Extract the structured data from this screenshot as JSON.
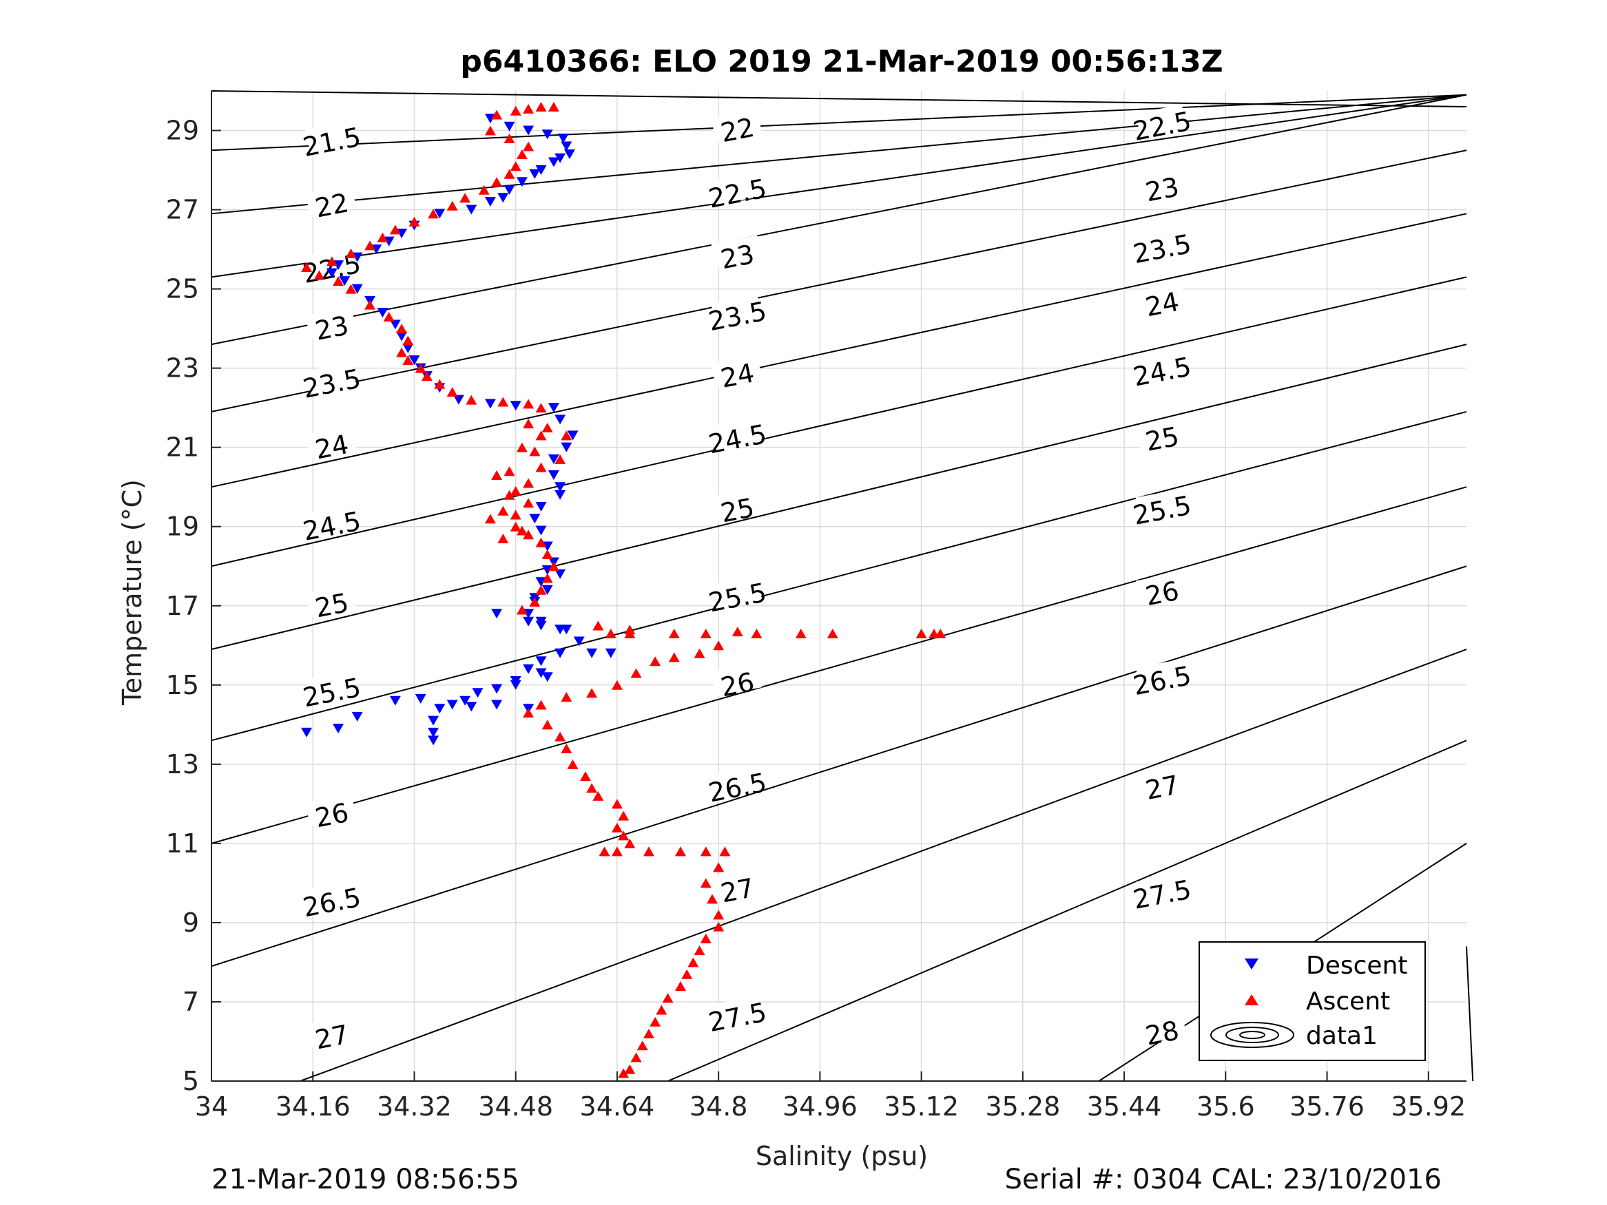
{
  "chart_data": {
    "type": "scatter",
    "title": "p6410366: ELO 2019 21-Mar-2019 00:56:13Z",
    "xlabel": "Salinity (psu)",
    "ylabel": "Temperature (°C)",
    "xlim": [
      34,
      35.98
    ],
    "ylim": [
      5,
      30
    ],
    "grid": true,
    "xticks": [
      34,
      34.16,
      34.32,
      34.48,
      34.64,
      34.8,
      34.96,
      35.12,
      35.28,
      35.44,
      35.6,
      35.76,
      35.92
    ],
    "xtick_labels": [
      "34",
      "34.16",
      "34.32",
      "34.48",
      "34.64",
      "34.8",
      "34.96",
      "35.12",
      "35.28",
      "35.44",
      "35.6",
      "35.76",
      "35.92"
    ],
    "yticks": [
      5,
      7,
      9,
      11,
      13,
      15,
      17,
      19,
      21,
      23,
      25,
      27,
      29
    ],
    "ytick_labels": [
      "5",
      "7",
      "9",
      "11",
      "13",
      "15",
      "17",
      "19",
      "21",
      "23",
      "25",
      "27",
      "29"
    ],
    "legend": {
      "position": "bottom-right",
      "entries": [
        "Descent",
        "Ascent",
        "data1"
      ]
    },
    "series": [
      {
        "name": "Descent",
        "color": "#0000ff",
        "marker": "triangle-down",
        "points": [
          [
            34.44,
            29.3
          ],
          [
            34.47,
            29.1
          ],
          [
            34.5,
            29.0
          ],
          [
            34.53,
            28.9
          ],
          [
            34.555,
            28.8
          ],
          [
            34.56,
            28.6
          ],
          [
            34.565,
            28.4
          ],
          [
            34.55,
            28.3
          ],
          [
            34.54,
            28.2
          ],
          [
            34.52,
            28.0
          ],
          [
            34.51,
            27.9
          ],
          [
            34.49,
            27.7
          ],
          [
            34.47,
            27.5
          ],
          [
            34.46,
            27.3
          ],
          [
            34.44,
            27.2
          ],
          [
            34.41,
            27.0
          ],
          [
            34.36,
            26.9
          ],
          [
            34.32,
            26.6
          ],
          [
            34.3,
            26.4
          ],
          [
            34.28,
            26.2
          ],
          [
            34.26,
            26.0
          ],
          [
            34.23,
            25.8
          ],
          [
            34.2,
            25.6
          ],
          [
            34.19,
            25.4
          ],
          [
            34.21,
            25.2
          ],
          [
            34.23,
            25.0
          ],
          [
            34.25,
            24.7
          ],
          [
            34.27,
            24.4
          ],
          [
            34.29,
            24.1
          ],
          [
            34.3,
            23.8
          ],
          [
            34.31,
            23.5
          ],
          [
            34.32,
            23.2
          ],
          [
            34.33,
            23.0
          ],
          [
            34.34,
            22.8
          ],
          [
            34.36,
            22.5
          ],
          [
            34.39,
            22.2
          ],
          [
            34.44,
            22.1
          ],
          [
            34.48,
            22.05
          ],
          [
            34.54,
            22.0
          ],
          [
            34.55,
            21.7
          ],
          [
            34.57,
            21.3
          ],
          [
            34.56,
            21.0
          ],
          [
            34.54,
            20.7
          ],
          [
            34.54,
            20.3
          ],
          [
            34.55,
            20.0
          ],
          [
            34.55,
            19.8
          ],
          [
            34.52,
            19.5
          ],
          [
            34.51,
            19.2
          ],
          [
            34.52,
            18.9
          ],
          [
            34.53,
            18.5
          ],
          [
            34.54,
            18.1
          ],
          [
            34.55,
            17.8
          ],
          [
            34.53,
            17.4
          ],
          [
            34.51,
            17.1
          ],
          [
            34.5,
            16.8
          ],
          [
            34.45,
            16.8
          ],
          [
            34.52,
            16.5
          ],
          [
            34.55,
            16.4
          ],
          [
            34.58,
            16.1
          ],
          [
            34.6,
            15.8
          ],
          [
            34.63,
            15.8
          ],
          [
            34.55,
            15.8
          ],
          [
            34.52,
            15.6
          ],
          [
            34.5,
            15.4
          ],
          [
            34.52,
            15.3
          ],
          [
            34.48,
            15.1
          ],
          [
            34.45,
            14.9
          ],
          [
            34.42,
            14.8
          ],
          [
            34.4,
            14.6
          ],
          [
            34.38,
            14.5
          ],
          [
            34.33,
            14.65
          ],
          [
            34.36,
            14.4
          ],
          [
            34.35,
            14.1
          ],
          [
            34.35,
            13.8
          ],
          [
            34.35,
            13.6
          ],
          [
            34.29,
            14.6
          ],
          [
            34.23,
            14.2
          ],
          [
            34.2,
            13.9
          ],
          [
            34.15,
            13.8
          ],
          [
            34.5,
            14.4
          ],
          [
            34.45,
            14.5
          ],
          [
            34.41,
            14.45
          ],
          [
            34.48,
            15.0
          ],
          [
            34.53,
            15.2
          ],
          [
            34.56,
            16.4
          ],
          [
            34.52,
            16.6
          ],
          [
            34.5,
            16.6
          ],
          [
            34.51,
            17.2
          ],
          [
            34.52,
            17.6
          ],
          [
            34.53,
            17.9
          ]
        ]
      },
      {
        "name": "Ascent",
        "color": "#ff0000",
        "marker": "triangle-up",
        "points": [
          [
            34.54,
            29.6
          ],
          [
            34.52,
            29.6
          ],
          [
            34.5,
            29.55
          ],
          [
            34.48,
            29.5
          ],
          [
            34.45,
            29.4
          ],
          [
            34.44,
            29.0
          ],
          [
            34.47,
            28.8
          ],
          [
            34.5,
            28.6
          ],
          [
            34.49,
            28.4
          ],
          [
            34.48,
            28.1
          ],
          [
            34.47,
            27.9
          ],
          [
            34.45,
            27.7
          ],
          [
            34.43,
            27.5
          ],
          [
            34.4,
            27.3
          ],
          [
            34.38,
            27.1
          ],
          [
            34.35,
            26.9
          ],
          [
            34.32,
            26.7
          ],
          [
            34.29,
            26.5
          ],
          [
            34.27,
            26.3
          ],
          [
            34.25,
            26.1
          ],
          [
            34.22,
            25.9
          ],
          [
            34.19,
            25.7
          ],
          [
            34.15,
            25.55
          ],
          [
            34.17,
            25.35
          ],
          [
            34.2,
            25.2
          ],
          [
            34.22,
            25.0
          ],
          [
            34.25,
            24.6
          ],
          [
            34.28,
            24.3
          ],
          [
            34.3,
            24.0
          ],
          [
            34.31,
            23.7
          ],
          [
            34.3,
            23.4
          ],
          [
            34.31,
            23.2
          ],
          [
            34.33,
            23.0
          ],
          [
            34.34,
            22.8
          ],
          [
            34.36,
            22.6
          ],
          [
            34.38,
            22.4
          ],
          [
            34.41,
            22.2
          ],
          [
            34.46,
            22.15
          ],
          [
            34.5,
            22.1
          ],
          [
            34.52,
            22.0
          ],
          [
            34.5,
            21.6
          ],
          [
            34.52,
            21.3
          ],
          [
            34.49,
            21.0
          ],
          [
            34.55,
            20.7
          ],
          [
            34.52,
            20.5
          ],
          [
            34.47,
            20.4
          ],
          [
            34.45,
            20.3
          ],
          [
            34.5,
            20.1
          ],
          [
            34.48,
            19.9
          ],
          [
            34.5,
            19.6
          ],
          [
            34.46,
            19.4
          ],
          [
            34.44,
            19.2
          ],
          [
            34.48,
            19.0
          ],
          [
            34.5,
            18.8
          ],
          [
            34.52,
            18.6
          ],
          [
            34.53,
            18.3
          ],
          [
            34.54,
            18.0
          ],
          [
            34.53,
            17.7
          ],
          [
            34.52,
            17.4
          ],
          [
            34.51,
            17.1
          ],
          [
            34.49,
            16.9
          ],
          [
            34.61,
            16.5
          ],
          [
            34.63,
            16.3
          ],
          [
            34.66,
            16.4
          ],
          [
            34.66,
            16.3
          ],
          [
            34.73,
            16.3
          ],
          [
            34.78,
            16.3
          ],
          [
            34.83,
            16.35
          ],
          [
            34.86,
            16.3
          ],
          [
            34.93,
            16.3
          ],
          [
            34.98,
            16.3
          ],
          [
            35.12,
            16.3
          ],
          [
            35.14,
            16.3
          ],
          [
            35.15,
            16.3
          ],
          [
            34.8,
            16.0
          ],
          [
            34.77,
            15.8
          ],
          [
            34.73,
            15.7
          ],
          [
            34.7,
            15.6
          ],
          [
            34.67,
            15.3
          ],
          [
            34.64,
            15.0
          ],
          [
            34.6,
            14.8
          ],
          [
            34.56,
            14.7
          ],
          [
            34.52,
            14.5
          ],
          [
            34.5,
            14.3
          ],
          [
            34.53,
            14.0
          ],
          [
            34.55,
            13.7
          ],
          [
            34.56,
            13.4
          ],
          [
            34.57,
            13.0
          ],
          [
            34.59,
            12.7
          ],
          [
            34.6,
            12.4
          ],
          [
            34.61,
            12.2
          ],
          [
            34.64,
            12.0
          ],
          [
            34.65,
            11.7
          ],
          [
            34.64,
            11.4
          ],
          [
            34.65,
            11.2
          ],
          [
            34.66,
            11.0
          ],
          [
            34.62,
            10.8
          ],
          [
            34.64,
            10.8
          ],
          [
            34.69,
            10.8
          ],
          [
            34.74,
            10.8
          ],
          [
            34.78,
            10.8
          ],
          [
            34.81,
            10.8
          ],
          [
            34.8,
            10.4
          ],
          [
            34.78,
            10.0
          ],
          [
            34.79,
            9.6
          ],
          [
            34.8,
            9.2
          ],
          [
            34.8,
            8.9
          ],
          [
            34.78,
            8.6
          ],
          [
            34.77,
            8.3
          ],
          [
            34.76,
            8.0
          ],
          [
            34.75,
            7.7
          ],
          [
            34.74,
            7.4
          ],
          [
            34.72,
            7.1
          ],
          [
            34.71,
            6.8
          ],
          [
            34.7,
            6.5
          ],
          [
            34.69,
            6.2
          ],
          [
            34.68,
            5.9
          ],
          [
            34.67,
            5.6
          ],
          [
            34.66,
            5.3
          ],
          [
            34.65,
            5.2
          ],
          [
            34.47,
            19.8
          ],
          [
            34.48,
            19.3
          ],
          [
            34.51,
            20.9
          ],
          [
            34.53,
            21.5
          ],
          [
            34.56,
            21.3
          ],
          [
            34.49,
            18.9
          ],
          [
            34.46,
            18.7
          ]
        ]
      }
    ],
    "contours": {
      "name": "data1",
      "color": "#000000",
      "left_labels": [
        "21.5",
        "22",
        "22.5",
        "23",
        "23.5",
        "24",
        "24.5",
        "25",
        "25.5",
        "26",
        "26.5",
        "27"
      ],
      "middle_labels": [
        "22",
        "22.5",
        "23",
        "23.5",
        "24",
        "24.5",
        "25",
        "25.5",
        "26",
        "26.5",
        "27",
        "27.5"
      ],
      "right_labels": [
        "22.5",
        "23",
        "23.5",
        "24",
        "24.5",
        "25",
        "25.5",
        "26",
        "26.5",
        "27",
        "27.5",
        "28"
      ],
      "left_anchor_t": [
        28.7,
        27.1,
        25.5,
        24.0,
        22.6,
        21.0,
        19.0,
        17.0,
        14.8,
        11.7,
        9.5,
        6.1
      ],
      "middle_anchor_t": [
        29.0,
        27.4,
        25.8,
        24.3,
        22.8,
        21.2,
        19.4,
        17.2,
        15.0,
        12.4,
        9.8,
        6.6
      ],
      "right_anchor_t": [
        29.1,
        27.5,
        26.0,
        24.6,
        22.9,
        21.2,
        19.4,
        17.3,
        15.1,
        12.4,
        9.7,
        6.2
      ],
      "lines": [
        [
          30.0,
          29.6
        ],
        [
          28.5,
          29.9
        ],
        [
          26.9,
          29.9
        ],
        [
          25.3,
          29.9
        ],
        [
          23.6,
          29.9
        ],
        [
          21.9,
          28.5
        ],
        [
          20.0,
          26.9
        ],
        [
          18.0,
          25.3
        ],
        [
          15.9,
          23.6
        ],
        [
          13.6,
          21.9
        ],
        [
          11.0,
          20.0
        ],
        [
          7.9,
          18.0
        ],
        [
          5.0,
          15.9
        ],
        [
          5.0,
          13.6
        ],
        [
          5.0,
          11.0
        ],
        [
          5.0,
          8.4
        ]
      ]
    }
  },
  "footer": {
    "left": "21-Mar-2019 08:56:55",
    "right": "Serial #: 0304  CAL: 23/10/2016"
  }
}
